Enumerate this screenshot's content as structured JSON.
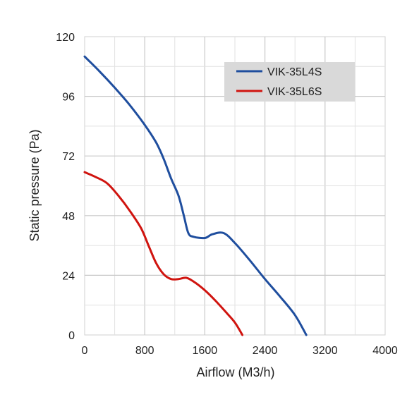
{
  "chart_data": {
    "type": "line",
    "title": "",
    "xlabel": "Airflow (M3/h)",
    "ylabel": "Static pressure (Pa)",
    "xlim": [
      0,
      4000
    ],
    "ylim": [
      0,
      120
    ],
    "x_ticks": [
      "0",
      "800",
      "1600",
      "2400",
      "3200",
      "4000"
    ],
    "y_ticks": [
      "0",
      "24",
      "48",
      "72",
      "96",
      "120"
    ],
    "grid": true,
    "legend_position": "top-right",
    "series": [
      {
        "name": "VIK-35L4S",
        "color": "#1F4E9E",
        "points": [
          [
            0,
            112
          ],
          [
            200,
            106
          ],
          [
            400,
            99.5
          ],
          [
            600,
            92.5
          ],
          [
            800,
            84.5
          ],
          [
            950,
            77.5
          ],
          [
            1050,
            71
          ],
          [
            1150,
            63
          ],
          [
            1250,
            56
          ],
          [
            1320,
            48
          ],
          [
            1380,
            41
          ],
          [
            1450,
            39.5
          ],
          [
            1600,
            39
          ],
          [
            1700,
            40.5
          ],
          [
            1850,
            41
          ],
          [
            2000,
            37
          ],
          [
            2200,
            30
          ],
          [
            2400,
            22.5
          ],
          [
            2600,
            15.5
          ],
          [
            2800,
            8
          ],
          [
            2950,
            0
          ]
        ]
      },
      {
        "name": "VIK-35L6S",
        "color": "#D0140F",
        "points": [
          [
            0,
            65.5
          ],
          [
            150,
            63.5
          ],
          [
            300,
            61
          ],
          [
            450,
            56
          ],
          [
            600,
            50
          ],
          [
            750,
            43
          ],
          [
            850,
            36
          ],
          [
            950,
            29
          ],
          [
            1050,
            24.5
          ],
          [
            1150,
            22.5
          ],
          [
            1250,
            22.5
          ],
          [
            1350,
            23
          ],
          [
            1450,
            21.5
          ],
          [
            1600,
            18
          ],
          [
            1750,
            13.5
          ],
          [
            1900,
            8.5
          ],
          [
            2000,
            5
          ],
          [
            2100,
            0
          ]
        ]
      }
    ]
  }
}
